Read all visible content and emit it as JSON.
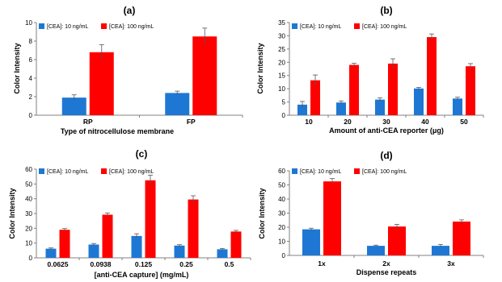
{
  "chart_data": [
    {
      "type": "bar",
      "title": "(a)",
      "xlabel": "Type of nitrocellulose membrane",
      "ylabel": "Color Intensity",
      "categories": [
        "RP",
        "FP"
      ],
      "ylim": [
        0,
        10
      ],
      "yticks": [
        0,
        2,
        4,
        6,
        8,
        10
      ],
      "grid": false,
      "legend": "top-left",
      "series": [
        {
          "name": "[CEA]: 10 ng/mL",
          "color": "#1f77d4",
          "values": [
            1.9,
            2.4
          ],
          "errors": [
            0.3,
            0.2
          ]
        },
        {
          "name": "[CEA]: 100 ng/mL",
          "color": "#ff0000",
          "values": [
            6.8,
            8.5
          ],
          "errors": [
            0.8,
            0.9
          ]
        }
      ]
    },
    {
      "type": "bar",
      "title": "(b)",
      "xlabel": "Amount of anti-CEA reporter (μg)",
      "ylabel": "Color Intensity",
      "categories": [
        "10",
        "20",
        "30",
        "40",
        "50"
      ],
      "ylim": [
        0,
        35
      ],
      "yticks": [
        0,
        5,
        10,
        15,
        20,
        25,
        30,
        35
      ],
      "grid": false,
      "legend": "top-left",
      "series": [
        {
          "name": "[CEA]: 10 ng/mL",
          "color": "#1f77d4",
          "values": [
            4.0,
            4.8,
            5.9,
            10.1,
            6.3
          ],
          "errors": [
            1.2,
            0.6,
            0.7,
            0.4,
            0.5
          ]
        },
        {
          "name": "[CEA]: 100 ng/mL",
          "color": "#ff0000",
          "values": [
            13.2,
            19.0,
            19.5,
            29.5,
            18.5
          ],
          "errors": [
            2.0,
            0.6,
            1.8,
            1.2,
            1.0
          ]
        }
      ]
    },
    {
      "type": "bar",
      "title": "(c)",
      "xlabel": "[anti-CEA capture] (mg/mL)",
      "ylabel": "Color Intensity",
      "categories": [
        "0.0625",
        "0.0938",
        "0.125",
        "0.25",
        "0.5"
      ],
      "ylim": [
        0,
        60
      ],
      "yticks": [
        0,
        10,
        20,
        30,
        40,
        50,
        60
      ],
      "grid": false,
      "legend": "top-left",
      "series": [
        {
          "name": "[CEA]: 10 ng/mL",
          "color": "#1f77d4",
          "values": [
            6.2,
            9.0,
            14.8,
            8.3,
            5.8
          ],
          "errors": [
            0.5,
            0.7,
            1.5,
            0.6,
            0.5
          ]
        },
        {
          "name": "[CEA]: 100 ng/mL",
          "color": "#ff0000",
          "values": [
            19.0,
            29.2,
            52.5,
            39.5,
            17.8
          ],
          "errors": [
            0.8,
            1.2,
            3.5,
            2.5,
            0.8
          ]
        }
      ]
    },
    {
      "type": "bar",
      "title": "(d)",
      "xlabel": "Dispense repeats",
      "ylabel": "Color Intensity",
      "categories": [
        "1x",
        "2x",
        "3x"
      ],
      "ylim": [
        0,
        60
      ],
      "yticks": [
        0,
        10,
        20,
        30,
        40,
        50,
        60
      ],
      "grid": false,
      "legend": "top-left",
      "series": [
        {
          "name": "[CEA]: 10 ng/mL",
          "color": "#1f77d4",
          "values": [
            18.5,
            6.8,
            6.8
          ],
          "errors": [
            0.8,
            0.5,
            1.0
          ]
        },
        {
          "name": "[CEA]: 100 ng/mL",
          "color": "#ff0000",
          "values": [
            52.5,
            20.5,
            24.0
          ],
          "errors": [
            2.0,
            1.5,
            1.2
          ]
        }
      ]
    }
  ]
}
